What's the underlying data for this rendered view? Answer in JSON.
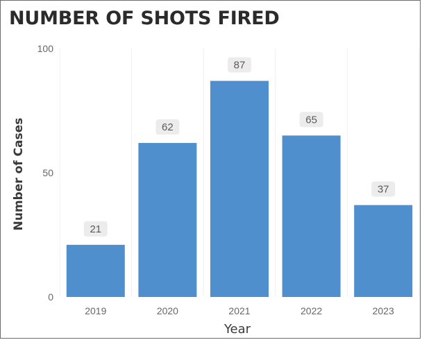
{
  "chart_data": {
    "type": "bar",
    "title": "NUMBER OF SHOTS FIRED",
    "xlabel": "Year",
    "ylabel": "Number of Cases",
    "categories": [
      "2019",
      "2020",
      "2021",
      "2022",
      "2023"
    ],
    "values": [
      21,
      62,
      87,
      65,
      37
    ],
    "data_labels": [
      "21",
      "62",
      "87",
      "65",
      "37"
    ],
    "yticks": [
      "0",
      "50",
      "100"
    ],
    "ytick_values": [
      0,
      50,
      100
    ],
    "ylim": [
      0,
      100
    ],
    "grid": true,
    "legend": "none",
    "colors": {
      "bar": "#4f8fce",
      "label_bg": "#ececec",
      "label_text": "#5a5a5a",
      "axis_text": "#666666",
      "axis_title": "#3a3a3a",
      "grid": "#f0f0f0"
    }
  }
}
